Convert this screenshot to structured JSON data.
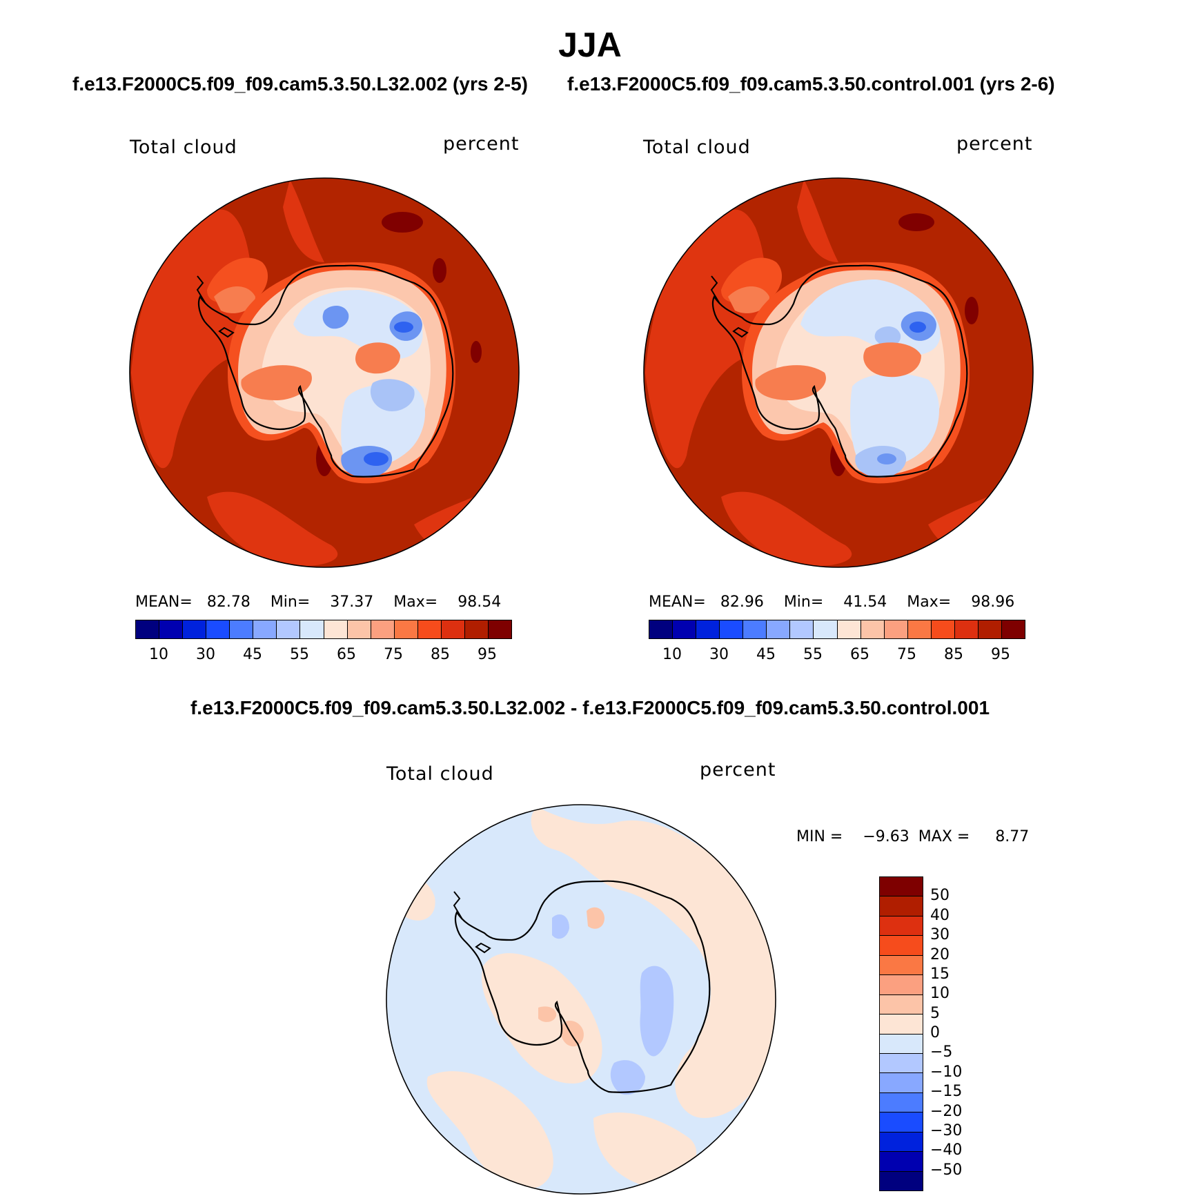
{
  "figure": {
    "title": "JJA",
    "case1_title": "f.e13.F2000C5.f09_f09.cam5.3.50.L32.002 (yrs 2-5)",
    "case2_title": "f.e13.F2000C5.f09_f09.cam5.3.50.control.001 (yrs 2-6)",
    "diff_title": "f.e13.F2000C5.f09_f09.cam5.3.50.L32.002 - f.e13.F2000C5.f09_f09.cam5.3.50.control.001"
  },
  "panels": [
    {
      "variable": "Total cloud",
      "units": "percent",
      "mean_label": "MEAN=",
      "mean": "82.78",
      "min_label": "Min=",
      "min": "37.37",
      "max_label": "Max=",
      "max": "98.54"
    },
    {
      "variable": "Total cloud",
      "units": "percent",
      "mean_label": "MEAN=",
      "mean": "82.96",
      "min_label": "Min=",
      "min": "41.54",
      "max_label": "Max=",
      "max": "98.96"
    }
  ],
  "diff_panel": {
    "variable": "Total cloud",
    "units": "percent",
    "min_label": "MIN =",
    "min": "−9.63",
    "max_label": "MAX =",
    "max": "8.77"
  },
  "colorbar_abs": {
    "colors": [
      "#00007f",
      "#0000b0",
      "#0022dd",
      "#1a4cff",
      "#4c7cff",
      "#88a8ff",
      "#b2c8ff",
      "#d8e8fb",
      "#fde5d5",
      "#fcc4a8",
      "#fba080",
      "#fa7844",
      "#f64c1c",
      "#dd3010",
      "#b01e00",
      "#7e0000"
    ],
    "ticks": [
      "10",
      "30",
      "45",
      "55",
      "65",
      "75",
      "85",
      "95"
    ]
  },
  "colorbar_diff": {
    "colors_top_to_bottom": [
      "#7e0000",
      "#b01e00",
      "#dd3010",
      "#f64c1c",
      "#fa7844",
      "#fba080",
      "#fcc4a8",
      "#fde5d5",
      "#d8e8fb",
      "#b2c8ff",
      "#88a8ff",
      "#4c7cff",
      "#1a4cff",
      "#0022dd",
      "#0000b0",
      "#00007f"
    ],
    "ticks_top_to_bottom": [
      "50",
      "40",
      "30",
      "20",
      "15",
      "10",
      "5",
      "0",
      "−5",
      "−10",
      "−15",
      "−20",
      "−30",
      "−40",
      "−50"
    ]
  },
  "map_colors": {
    "ocean_main": "#b22400",
    "ocean_ring": "#df3510",
    "dark": "#800000",
    "ice_edge": "#f5501f",
    "mid_orange": "#f77d4f",
    "pale_pink": "#fcc7ad",
    "very_pale": "#fde2d2",
    "pale_blue": "#d8e6fb",
    "light_blue": "#a9c3f7",
    "blue": "#6c95f2",
    "deep_blue": "#2e62f0",
    "diff_pos": "#fde5d5",
    "diff_neg": "#d8e8fb",
    "diff_neg2": "#b2c8ff",
    "diff_pos2": "#fcc4a8",
    "coast": "#000000"
  }
}
